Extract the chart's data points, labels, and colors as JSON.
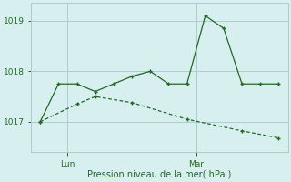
{
  "line1_x": [
    0,
    1,
    2,
    3,
    4,
    5,
    6,
    7,
    8,
    9,
    10,
    11,
    12,
    13
  ],
  "line1_y": [
    1017.0,
    1017.75,
    1017.75,
    1017.6,
    1017.75,
    1017.9,
    1018.0,
    1017.75,
    1017.75,
    1019.1,
    1018.85,
    1017.75,
    1017.75,
    1017.75
  ],
  "line2_x": [
    0,
    2,
    3,
    5,
    8,
    11,
    13
  ],
  "line2_y": [
    1017.0,
    1017.35,
    1017.5,
    1017.38,
    1017.05,
    1016.82,
    1016.68
  ],
  "line_color": "#1f6b1f",
  "bg_color": "#d8efef",
  "grid_color": "#aacece",
  "yticks": [
    1017,
    1018,
    1019
  ],
  "ylim": [
    1016.4,
    1019.35
  ],
  "xlim": [
    -0.5,
    13.5
  ],
  "xlabel": "Pression niveau de la mer( hPa )",
  "tick_lun_x": 1.5,
  "tick_mar_x": 8.5
}
